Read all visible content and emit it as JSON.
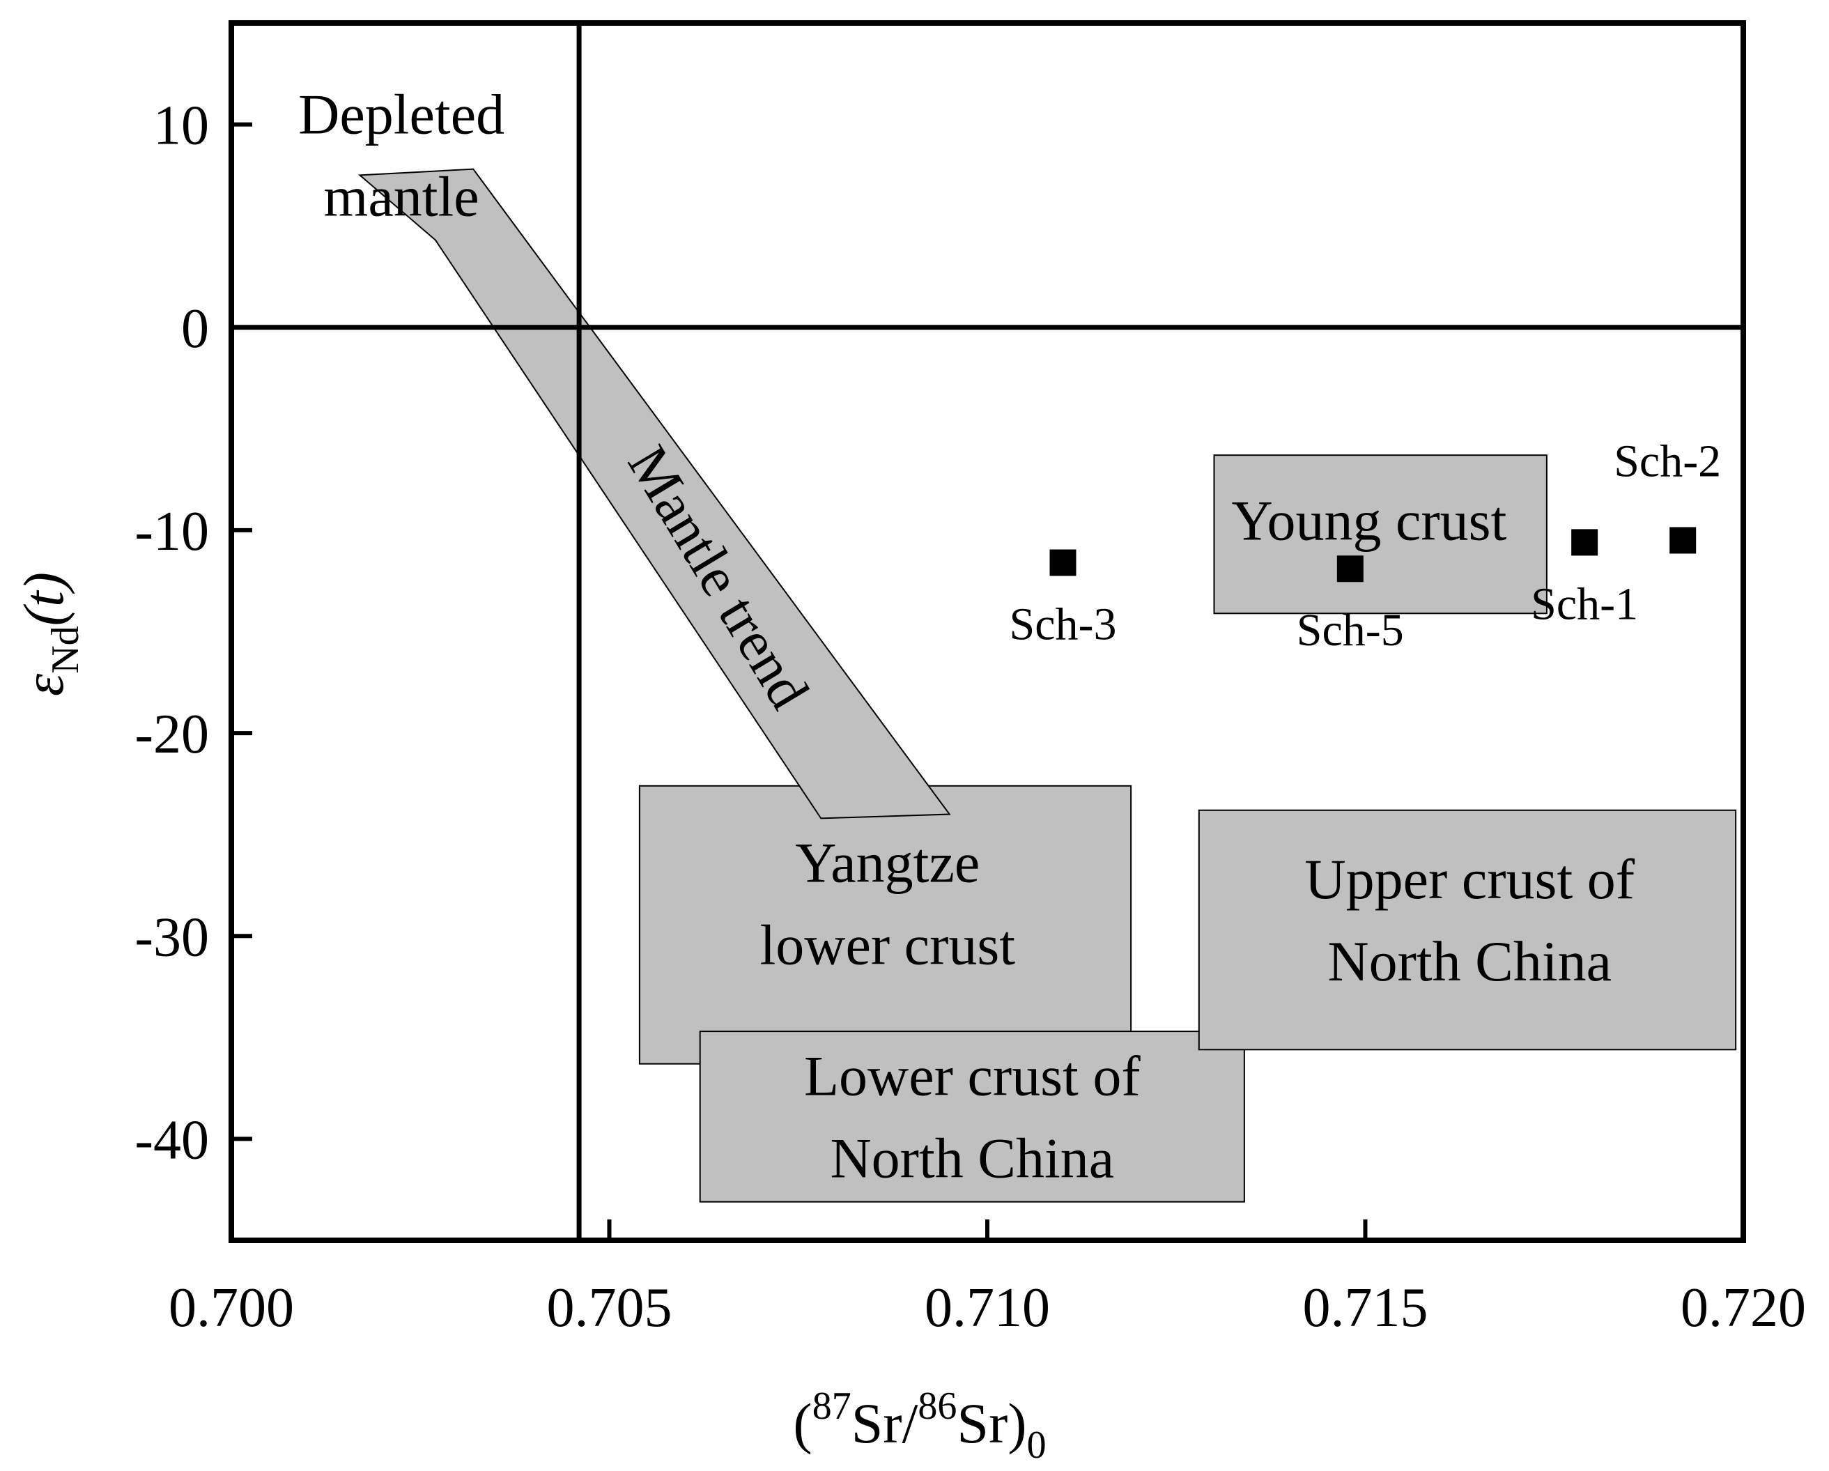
{
  "chart_data": {
    "type": "scatter",
    "title": "",
    "xlabel": {
      "open": "(",
      "sup1": "87",
      "mid": "Sr/",
      "sup2": "86",
      "end": "Sr)",
      "sub": "0"
    },
    "ylabel": {
      "main": "ε",
      "sub": "Nd",
      "rest": "(t)"
    },
    "xlim": [
      0.7,
      0.72
    ],
    "ylim": [
      -45,
      15
    ],
    "xticks": [
      "0.700",
      "0.705",
      "0.710",
      "0.715",
      "0.720"
    ],
    "xtick_values": [
      0.7,
      0.705,
      0.71,
      0.715,
      0.72
    ],
    "yticks": [
      "10",
      "0",
      "-10",
      "-20",
      "-30",
      "-40"
    ],
    "ytick_values": [
      10,
      0,
      -10,
      -20,
      -30,
      -40
    ],
    "reference_lines": {
      "vertical_x": 0.7046,
      "horizontal_y": 0
    },
    "fields": [
      {
        "name": "yangtze-lower-crust",
        "shape": "rect",
        "x": [
          0.7054,
          0.7119
        ],
        "y": [
          -36.3,
          -22.6
        ],
        "label_lines": [
          "Yangtze",
          "lower crust"
        ],
        "label_anchor": [
          0.70868,
          -28.4
        ],
        "fill": "#c0c0c0"
      },
      {
        "name": "lower-crust-north-china",
        "shape": "rect",
        "x": [
          0.7062,
          0.7134
        ],
        "y": [
          -43.1,
          -34.7
        ],
        "label_lines": [
          "Lower crust of",
          "North China"
        ],
        "label_anchor": [
          0.7098,
          -38.9
        ],
        "fill": "#c0c0c0"
      },
      {
        "name": "upper-crust-north-china",
        "shape": "rect",
        "x": [
          0.7128,
          0.7199
        ],
        "y": [
          -35.6,
          -23.8
        ],
        "label_lines": [
          "Upper crust of",
          "North China"
        ],
        "label_anchor": [
          0.71638,
          -29.2
        ],
        "fill": "#c0c0c0"
      },
      {
        "name": "young-crust",
        "shape": "rect",
        "x": [
          0.713,
          0.7174
        ],
        "y": [
          -14.1,
          -6.3
        ],
        "label_lines": [
          "Young crust"
        ],
        "label_anchor": [
          0.71505,
          -9.5
        ],
        "fill": "#c0c0c0"
      },
      {
        "name": "mantle-trend",
        "shape": "polygon",
        "points": [
          [
            0.7017,
            7.5
          ],
          [
            0.7032,
            7.8
          ],
          [
            0.7095,
            -24.0
          ],
          [
            0.7078,
            -24.2
          ],
          [
            0.7027,
            4.3
          ]
        ],
        "label_lines": [
          "Mantle trend"
        ],
        "label_anchor": [
          0.70645,
          -12.3
        ],
        "label_rotation": 59,
        "fill": "#c0c0c0"
      }
    ],
    "annotations": [
      {
        "name": "depleted-mantle-label",
        "lines": [
          "Depleted",
          "mantle"
        ],
        "anchor": [
          0.70225,
          8.5
        ]
      }
    ],
    "series": [
      {
        "name": "samples",
        "marker": "square",
        "points": [
          {
            "label": "Sch-3",
            "x": 0.711,
            "y": -11.6,
            "label_pos": "below"
          },
          {
            "label": "Sch-5",
            "x": 0.7148,
            "y": -11.9,
            "label_pos": "below"
          },
          {
            "label": "Sch-1",
            "x": 0.7179,
            "y": -10.6,
            "label_pos": "below"
          },
          {
            "label": "Sch-2",
            "x": 0.7192,
            "y": -10.5,
            "label_pos": "above"
          }
        ]
      }
    ]
  }
}
